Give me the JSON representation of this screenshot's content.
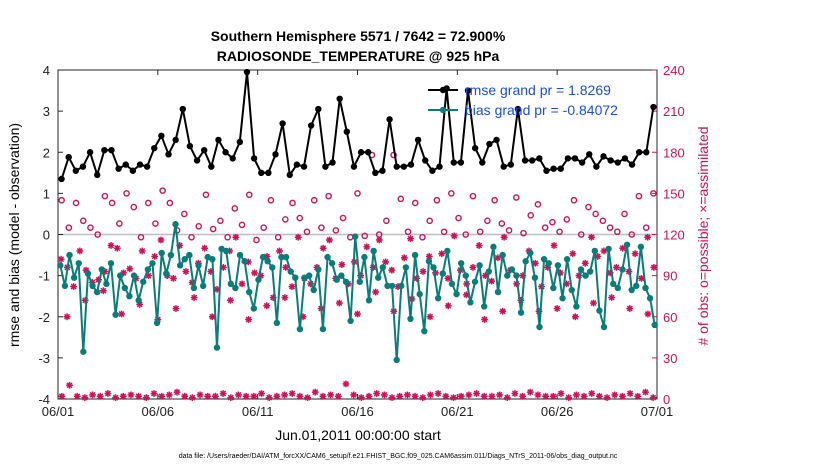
{
  "chart_data": {
    "type": "line",
    "title": "Southern Hemisphere 5571 / 7642 = 72.900%",
    "subtitle": "RADIOSONDE_TEMPERATURE @ 925 hPa",
    "xlabel": "Jun.01,2011 00:00:00 start",
    "ylabel_left": "rmse and bias (model - observation)",
    "ylabel_right": "# of obs: o=possible; ×=assimilated",
    "ylim_left": [
      -4,
      4
    ],
    "ylim_right": [
      0,
      240
    ],
    "xlim_days": [
      0,
      30
    ],
    "x_ticks": [
      0,
      5,
      10,
      15,
      20,
      25,
      30
    ],
    "x_tick_labels": [
      "06/01",
      "06/06",
      "06/11",
      "06/16",
      "06/21",
      "06/26",
      "07/01"
    ],
    "y_ticks_left": [
      "-4",
      "-3",
      "-2",
      "-1",
      "0",
      "1",
      "2",
      "3",
      "4"
    ],
    "y_ticks_right": [
      "0",
      "30",
      "60",
      "90",
      "120",
      "150",
      "180",
      "210",
      "240"
    ],
    "zero_line": 0,
    "legend": {
      "position": "top-right",
      "entries": [
        "rmse grand pr = 1.8269",
        "bias grand pr = -0.84072"
      ]
    },
    "series": [
      {
        "name": "rmse",
        "color": "#000000",
        "axis": "left",
        "values": [
          1.35,
          1.88,
          1.55,
          1.65,
          2.0,
          1.45,
          2.05,
          2.05,
          1.6,
          1.7,
          1.55,
          1.7,
          1.65,
          2.1,
          2.4,
          1.95,
          2.3,
          3.05,
          2.15,
          1.8,
          2.05,
          1.65,
          2.3,
          2.0,
          1.85,
          2.25,
          3.95,
          1.85,
          1.5,
          1.5,
          1.95,
          2.7,
          1.45,
          1.7,
          1.65,
          2.65,
          3.05,
          1.65,
          1.75,
          3.3,
          2.5,
          1.65,
          2.0,
          2.0,
          1.5,
          1.55,
          2.8,
          1.65,
          1.65,
          1.7,
          2.3,
          1.8,
          1.55,
          1.65,
          3.55,
          1.75,
          1.75,
          3.5,
          2.1,
          1.75,
          2.2,
          2.3,
          1.65,
          1.7,
          3.05,
          1.8,
          1.8,
          1.85,
          1.55,
          1.6,
          1.6,
          1.85,
          1.85,
          1.75,
          1.95,
          1.65,
          1.9,
          1.8,
          1.75,
          1.85,
          1.7,
          2.0,
          2.0,
          3.1
        ]
      },
      {
        "name": "bias",
        "color": "#0a7c7a",
        "axis": "left",
        "values": [
          -0.75,
          -1.25,
          -0.5,
          -1.05,
          -0.7,
          -2.85,
          -0.95,
          -1.25,
          -1.4,
          -0.85,
          -1.2,
          -0.7,
          -1.95,
          -1.0,
          -1.3,
          -1.5,
          -1.0,
          -1.6,
          -1.15,
          -0.85,
          -0.7,
          -2.15,
          -0.45,
          -0.95,
          -0.5,
          0.25,
          -0.75,
          -0.6,
          -0.5,
          -1.3,
          -0.75,
          -1.25,
          -0.55,
          -0.6,
          -2.75,
          -0.35,
          -0.4,
          -1.2,
          -1.3,
          -0.5,
          -0.65,
          -1.4,
          -1.8,
          -1.1,
          -0.55,
          -0.65,
          -0.8,
          -2.15,
          -0.55,
          -0.55,
          -0.9,
          -1.05,
          -2.3,
          -1.05,
          -1.0,
          -1.35,
          -0.85,
          -2.3,
          -0.55,
          -0.7,
          -1.1,
          -1.0,
          -1.15,
          -2.1,
          -0.05,
          -1.15,
          -0.55,
          -1.6,
          -0.4,
          -1.05,
          -0.8,
          -1.25,
          -1.25,
          -3.05,
          -1.25,
          -0.8,
          -2.05,
          -0.5,
          -1.45,
          -2.35,
          -0.65,
          -0.8,
          -1.55,
          -0.95,
          -0.4,
          -1.2,
          -1.45,
          -0.7,
          -1.0,
          -1.65,
          -1.15,
          -0.75,
          -1.75,
          -0.9,
          -0.3,
          -1.4,
          -0.5,
          -1.0,
          -0.85,
          -1.0,
          -1.9,
          -0.65,
          -0.45,
          -1.05,
          -2.25,
          -0.6,
          -0.7,
          -1.3,
          -0.75,
          -1.55,
          -0.6,
          -1.35,
          -1.75,
          -0.85,
          -1.0,
          -0.9,
          -0.4,
          -1.85,
          -2.25,
          -0.35,
          -1.2,
          -1.3,
          -0.85,
          -0.25,
          -1.35,
          -1.25,
          -0.3,
          -1.3,
          -1.55,
          -2.2
        ]
      },
      {
        "name": "possible",
        "marker": "o",
        "color": "#c8145a",
        "axis": "right",
        "values": [
          145,
          125,
          143,
          130,
          125,
          120,
          148,
          143,
          128,
          150,
          140,
          118,
          143,
          128,
          152,
          143,
          123,
          135,
          118,
          126,
          149,
          124,
          130,
          118,
          139,
          127,
          149,
          116,
          125,
          145,
          118,
          131,
          143,
          132,
          122,
          145,
          125,
          148,
          123,
          132,
          118,
          150,
          119,
          178,
          120,
          130,
          178,
          146,
          122,
          143,
          118,
          130,
          145,
          122,
          150,
          132,
          120,
          148,
          122,
          130,
          145,
          128,
          123,
          147,
          121,
          134,
          142,
          125,
          129,
          122,
          131,
          145,
          120,
          140,
          135,
          130,
          125,
          122,
          135,
          120,
          148,
          125,
          150
        ]
      },
      {
        "name": "assimilated",
        "marker": "x",
        "color": "#c8145a",
        "axis": "right",
        "values": [
          2,
          10,
          2,
          1,
          3,
          2,
          4,
          1,
          2,
          3,
          2,
          1,
          4,
          2,
          3,
          5,
          2,
          1,
          3,
          2,
          2,
          4,
          1,
          3,
          2,
          2,
          4,
          1,
          2,
          3,
          4,
          2,
          1,
          5,
          2,
          3,
          2,
          11,
          3,
          1,
          2,
          4,
          3,
          1,
          2,
          3,
          2,
          1,
          3,
          4,
          2,
          1,
          2,
          3,
          4,
          2,
          2,
          3,
          1,
          4,
          2,
          5,
          3,
          2,
          2,
          4,
          1,
          3,
          2,
          4,
          2,
          1,
          3,
          2,
          4,
          2,
          5,
          1
        ]
      },
      {
        "name": "assimilated (upper band)",
        "marker": "x",
        "color": "#c8145a",
        "axis": "right",
        "values": [
          102,
          96,
          82,
          108,
          94,
          85,
          87,
          93,
          112,
          110,
          92,
          95,
          88,
          108,
          90,
          104,
          116,
          90,
          88,
          112,
          93,
          85,
          99,
          110,
          93,
          80,
          96,
          108,
          118,
          84,
          100,
          92,
          90,
          104,
          74,
          108,
          96,
          82,
          118,
          88,
          84,
          96,
          110,
          116,
          88,
          98,
          84,
          100,
          90,
          111,
          96,
          116,
          100,
          94,
          82,
          103,
          117,
          88,
          93,
          104,
          92,
          106,
          88,
          119,
          94,
          84,
          96,
          112,
          90,
          86,
          103,
          118,
          94,
          84,
          90,
          108,
          99,
          82,
          96,
          112,
          92,
          84,
          106,
          90,
          99,
          118,
          104,
          108,
          92,
          96,
          110,
          93,
          106,
          88,
          118,
          96
        ]
      },
      {
        "name": "assimilated (lower band)",
        "marker": "x",
        "color": "#c8145a",
        "axis": "right",
        "values": [
          60,
          72,
          79,
          62,
          69,
          58,
          66,
          74,
          60,
          72,
          58,
          68,
          74,
          60,
          66,
          70,
          62,
          78,
          64,
          73,
          60,
          68,
          76,
          58,
          64,
          72,
          64,
          66,
          60,
          70,
          74,
          66,
          62
        ]
      }
    ]
  },
  "footnote": "data file: /Users/raeder/DAI/ATM_forcXX/CAM6_setup/f.e21.FHIST_BGC.f09_025.CAM6assim.011/Diags_NTrS_2011-06/obs_diag_output.nc"
}
